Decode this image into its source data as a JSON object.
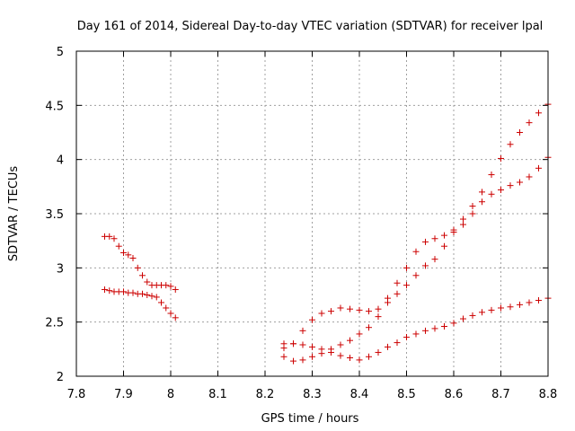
{
  "chart_data": {
    "type": "scatter",
    "title": "Day 161 of 2014, Sidereal Day-to-day VTEC variation (SDTVAR) for receiver lpal",
    "xlabel": "GPS time / hours",
    "ylabel": "SDTVAR / TECUs",
    "xlim": [
      7.8,
      8.8
    ],
    "ylim": [
      2,
      5
    ],
    "x_ticks": [
      "7.8",
      "7.9",
      "8",
      "8.1",
      "8.2",
      "8.3",
      "8.4",
      "8.5",
      "8.6",
      "8.7",
      "8.8"
    ],
    "y_ticks": [
      "2",
      "2.5",
      "3",
      "3.5",
      "4",
      "4.5",
      "5"
    ],
    "grid": true,
    "marker": "+",
    "marker_color": "#cc0000",
    "series": [
      {
        "x": [
          7.86,
          7.87,
          7.88,
          7.89,
          7.9,
          7.91,
          7.92,
          7.93,
          7.94,
          7.95,
          7.96,
          7.97,
          7.98,
          7.99,
          8.0,
          8.01
        ],
        "y": [
          3.29,
          3.29,
          3.27,
          3.2,
          3.14,
          3.12,
          3.09,
          3.0,
          2.93,
          2.87,
          2.84,
          2.84,
          2.84,
          2.84,
          2.83,
          2.8
        ]
      },
      {
        "x": [
          7.86,
          7.87,
          7.88,
          7.89,
          7.9,
          7.91,
          7.92,
          7.93,
          7.94,
          7.95,
          7.96,
          7.97,
          7.98,
          7.99,
          8.0,
          8.01
        ],
        "y": [
          2.8,
          2.79,
          2.78,
          2.78,
          2.78,
          2.77,
          2.77,
          2.76,
          2.76,
          2.75,
          2.74,
          2.73,
          2.68,
          2.63,
          2.58,
          2.54
        ]
      },
      {
        "x": [
          8.24,
          8.26,
          8.28,
          8.3,
          8.32,
          8.34,
          8.36,
          8.38,
          8.4,
          8.42,
          8.44,
          8.46,
          8.48,
          8.5,
          8.52,
          8.54,
          8.56,
          8.58,
          8.6,
          8.62,
          8.64,
          8.66,
          8.68,
          8.7,
          8.72,
          8.74,
          8.76,
          8.78,
          8.8
        ],
        "y": [
          2.26,
          2.3,
          2.42,
          2.52,
          2.58,
          2.6,
          2.63,
          2.62,
          2.61,
          2.6,
          2.62,
          2.72,
          2.86,
          3.0,
          3.15,
          3.24,
          3.27,
          3.3,
          3.35,
          3.45,
          3.57,
          3.7,
          3.86,
          4.01,
          4.14,
          4.25,
          4.34,
          4.43,
          4.51
        ]
      },
      {
        "x": [
          8.24,
          8.26,
          8.28,
          8.3,
          8.32,
          8.34,
          8.36,
          8.38,
          8.4,
          8.42,
          8.44,
          8.46,
          8.48,
          8.5,
          8.52,
          8.54,
          8.56,
          8.58,
          8.6,
          8.62,
          8.64,
          8.66,
          8.68,
          8.7,
          8.72,
          8.74,
          8.76,
          8.78,
          8.8
        ],
        "y": [
          2.18,
          2.14,
          2.15,
          2.18,
          2.21,
          2.25,
          2.29,
          2.33,
          2.39,
          2.45,
          2.55,
          2.68,
          2.76,
          2.84,
          2.93,
          3.02,
          3.08,
          3.2,
          3.33,
          3.4,
          3.5,
          3.61,
          3.68,
          3.72,
          3.76,
          3.79,
          3.84,
          3.92,
          4.02
        ]
      },
      {
        "x": [
          8.24,
          8.26,
          8.28,
          8.3,
          8.32,
          8.34,
          8.36,
          8.38,
          8.4,
          8.42,
          8.44,
          8.46,
          8.48,
          8.5,
          8.52,
          8.54,
          8.56,
          8.58,
          8.6,
          8.62,
          8.64,
          8.66,
          8.68,
          8.7,
          8.72,
          8.74,
          8.76,
          8.78,
          8.8
        ],
        "y": [
          2.3,
          2.3,
          2.29,
          2.27,
          2.25,
          2.22,
          2.19,
          2.17,
          2.15,
          2.18,
          2.22,
          2.27,
          2.31,
          2.36,
          2.39,
          2.42,
          2.44,
          2.46,
          2.49,
          2.53,
          2.56,
          2.59,
          2.61,
          2.63,
          2.64,
          2.66,
          2.68,
          2.7,
          2.72
        ]
      }
    ]
  }
}
